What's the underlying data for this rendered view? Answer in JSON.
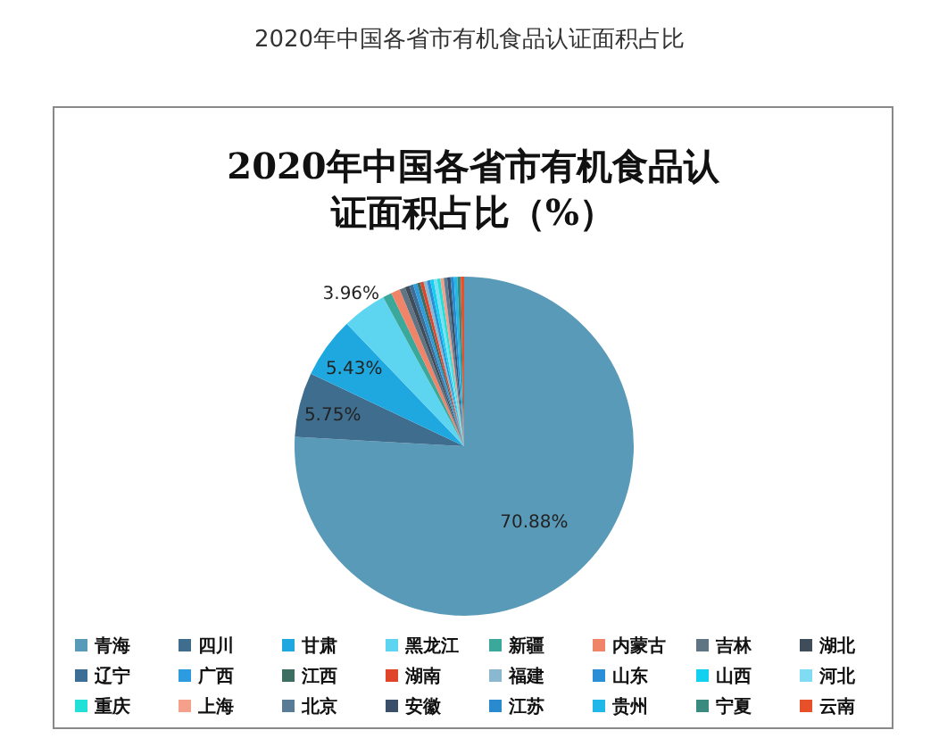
{
  "chart_data": {
    "type": "pie",
    "title": "2020年中国各省市有机食品认证面积占比",
    "subtitle": "2020年中国各省市有机食品认证面积占比（%）",
    "categories": [
      "青海",
      "四川",
      "甘肃",
      "黑龙江",
      "新疆",
      "内蒙古",
      "吉林",
      "湖北",
      "辽宁",
      "广西",
      "江西",
      "湖南",
      "福建",
      "山东",
      "山西",
      "河北",
      "重庆",
      "上海",
      "北京",
      "安徽",
      "江苏",
      "贵州",
      "宁夏",
      "云南"
    ],
    "values": [
      70.88,
      5.75,
      5.43,
      3.96,
      0.8,
      0.8,
      0.5,
      0.4,
      0.35,
      0.35,
      0.3,
      0.3,
      0.3,
      0.3,
      0.3,
      0.3,
      0.3,
      0.3,
      0.3,
      0.3,
      0.3,
      0.3,
      0.3,
      0.3
    ],
    "value_labels": [
      "70.88%",
      "5.75%",
      "5.43%",
      "3.96%",
      null,
      null,
      null,
      null,
      null,
      null,
      null,
      null,
      null,
      null,
      null,
      null,
      null,
      null,
      null,
      null,
      null,
      null,
      null,
      null
    ],
    "colors": [
      "#5a9ab9",
      "#3e6d8e",
      "#1fa8e0",
      "#5dd5f0",
      "#3aa89a",
      "#f08468",
      "#5f7584",
      "#3f4c5a",
      "#3d6f96",
      "#2d9be0",
      "#3d6e62",
      "#e0442a",
      "#8ab8d0",
      "#2b8fd8",
      "#12d0f0",
      "#7fdcf2",
      "#20e0d8",
      "#f5a08a",
      "#587c96",
      "#3b5068",
      "#2a8ad0",
      "#20b8e8",
      "#3a8a80",
      "#e8502a"
    ],
    "legend": "bottom"
  }
}
